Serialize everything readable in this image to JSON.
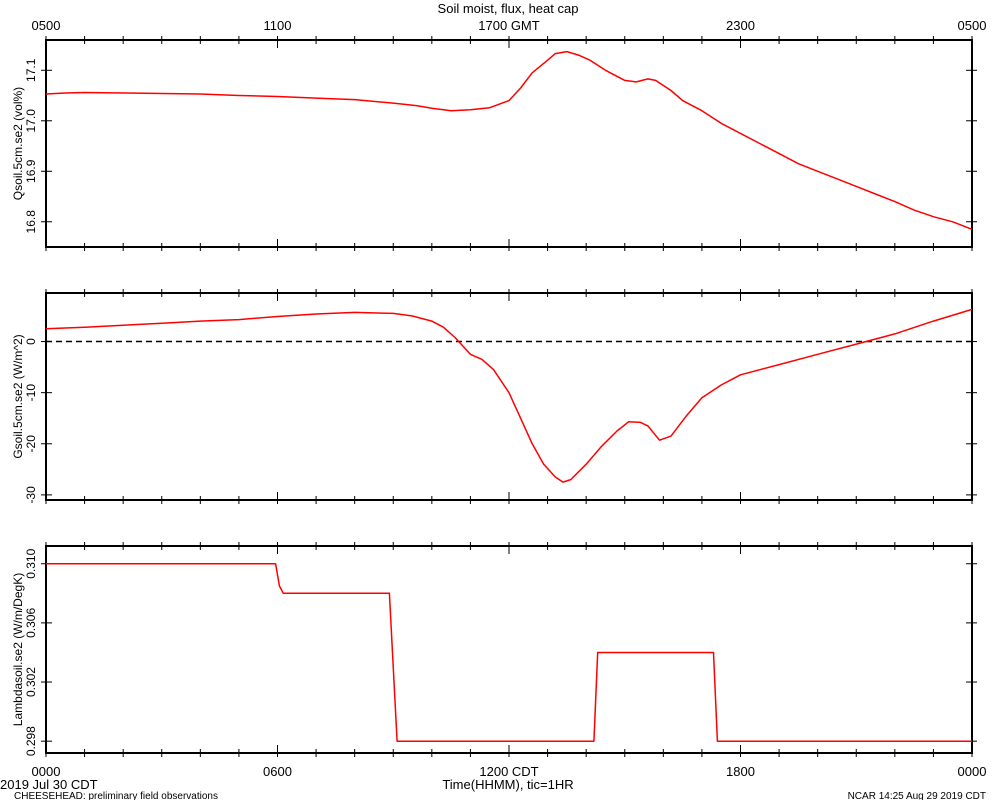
{
  "title": "Soil moist, flux, heat cap",
  "top_axis_ticks": [
    "0500",
    "1100",
    "1700 GMT",
    "2300",
    "0500"
  ],
  "bottom_axis_ticks": [
    "0000",
    "0600",
    "1200 CDT",
    "1800",
    "0000"
  ],
  "xlabel": "Time(HHMM), tic=1HR",
  "date_label": "2019 Jul 30 CDT",
  "footer_left": "CHEESEHEAD: preliminary field observations",
  "footer_right": "NCAR 14:25 Aug 29 2019 CDT",
  "colors": {
    "series": "#ff0000",
    "axis": "#000000"
  },
  "chart_data": [
    {
      "type": "line",
      "ylabel": "Qsoil.5cm.se2 (vol%)",
      "ylim": [
        16.75,
        17.16
      ],
      "yticks": [
        16.8,
        16.9,
        17.0,
        17.1
      ],
      "ytick_labels": [
        "16.8",
        "16.9",
        "17.0",
        "17.1"
      ],
      "xlim": [
        0,
        24
      ],
      "series": [
        {
          "x": [
            0,
            0.5,
            1,
            2,
            3,
            4,
            5,
            6,
            7,
            8,
            9,
            9.6,
            10,
            10.5,
            11,
            11.5,
            12,
            12.3,
            12.6,
            13,
            13.2,
            13.5,
            13.8,
            14.1,
            14.5,
            15,
            15.3,
            15.6,
            15.8,
            16.2,
            16.5,
            17,
            17.5,
            18,
            18.5,
            19,
            19.5,
            20,
            20.5,
            21,
            21.5,
            22,
            22.5,
            23,
            23.5,
            24
          ],
          "y": [
            17.053,
            17.055,
            17.056,
            17.055,
            17.054,
            17.053,
            17.05,
            17.048,
            17.045,
            17.042,
            17.035,
            17.03,
            17.025,
            17.02,
            17.022,
            17.026,
            17.04,
            17.065,
            17.095,
            17.12,
            17.133,
            17.137,
            17.13,
            17.12,
            17.1,
            17.08,
            17.077,
            17.083,
            17.08,
            17.06,
            17.04,
            17.02,
            16.995,
            16.975,
            16.955,
            16.935,
            16.915,
            16.9,
            16.885,
            16.87,
            16.855,
            16.84,
            16.823,
            16.81,
            16.8,
            16.785
          ]
        }
      ]
    },
    {
      "type": "line",
      "ylabel": "Gsoil.5cm.se2 (W/m^2)",
      "ylim": [
        -31,
        9.5
      ],
      "yticks": [
        -30,
        -20,
        -10,
        0
      ],
      "ytick_labels": [
        "-30",
        "-20",
        "-10",
        "0"
      ],
      "zero_line": true,
      "xlim": [
        0,
        24
      ],
      "series": [
        {
          "x": [
            0,
            1,
            2,
            3,
            4,
            5,
            6,
            7,
            8,
            9,
            9.5,
            10,
            10.3,
            10.6,
            11,
            11.3,
            11.6,
            12,
            12.3,
            12.6,
            12.9,
            13.2,
            13.4,
            13.6,
            14,
            14.4,
            14.8,
            15.1,
            15.4,
            15.6,
            15.9,
            16.2,
            16.6,
            17,
            17.5,
            18,
            19,
            20,
            21,
            22,
            23,
            24
          ],
          "y": [
            2.5,
            2.8,
            3.2,
            3.6,
            4.0,
            4.3,
            4.9,
            5.4,
            5.7,
            5.5,
            5.0,
            4.0,
            2.8,
            0.8,
            -2.5,
            -3.5,
            -5.5,
            -10,
            -15,
            -20,
            -24,
            -26.5,
            -27.5,
            -27,
            -24,
            -20.5,
            -17.5,
            -15.7,
            -15.8,
            -16.5,
            -19.3,
            -18.5,
            -14.5,
            -11,
            -8.5,
            -6.5,
            -4.5,
            -2.5,
            -0.5,
            1.5,
            4.0,
            6.3
          ]
        }
      ]
    },
    {
      "type": "line",
      "ylabel": "Lambdasoil.se2 (W/m/DegK)",
      "ylim": [
        0.2972,
        0.3112
      ],
      "yticks": [
        0.298,
        0.302,
        0.306,
        0.31
      ],
      "ytick_labels": [
        "0.298",
        "0.302",
        "0.306",
        "0.310"
      ],
      "xlim": [
        0,
        24
      ],
      "series": [
        {
          "x": [
            0,
            5.95,
            6.05,
            6.15,
            8.9,
            9.1,
            14.2,
            14.3,
            17.3,
            17.4,
            24
          ],
          "y": [
            0.31,
            0.31,
            0.3085,
            0.308,
            0.308,
            0.298,
            0.298,
            0.304,
            0.304,
            0.298,
            0.298
          ]
        }
      ]
    }
  ]
}
